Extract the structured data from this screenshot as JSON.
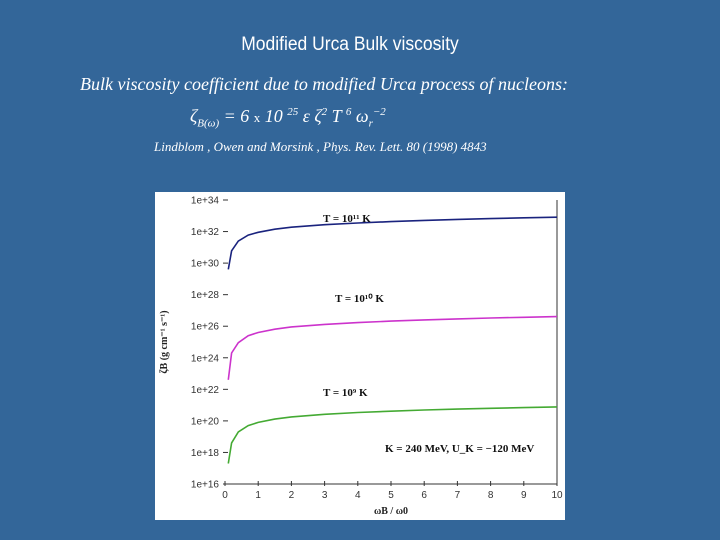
{
  "header": {
    "title": "Modified Urca Bulk viscosity",
    "subtitle": "Bulk viscosity coefficient due to modified Urca process of nucleons:",
    "formula": {
      "zeta": "ζ",
      "sub": "B(ω)",
      "eq": " = 6 ",
      "times": "x",
      "coef": " 10 ",
      "exp1": "25",
      "eps": " ε ζ",
      "exp2": "2",
      "T": " T ",
      "exp3": "6",
      "omega": " ω",
      "sub2": "r",
      "exp4": "−2"
    },
    "reference": "Lindblom , Owen and Morsink , Phys. Rev. Lett. 80 (1998) 4843"
  },
  "chart_data": {
    "type": "line",
    "xlabel": "ωB / ω0",
    "ylabel": "ζB (g cm⁻¹ s⁻¹)",
    "xlim": [
      0,
      10
    ],
    "ylim": [
      1e+16,
      1e+34
    ],
    "yscale": "log",
    "xticks": [
      "0",
      "1",
      "2",
      "3",
      "4",
      "5",
      "6",
      "7",
      "8",
      "9",
      "10"
    ],
    "yticks": [
      "1e+34",
      "1e+32",
      "1e+30",
      "1e+28",
      "1e+26",
      "1e+24",
      "1e+22",
      "1e+20",
      "1e+18",
      "1e+16"
    ],
    "series": [
      {
        "name": "T = 10¹¹ K",
        "color": "#1a237e",
        "x": [
          0.1,
          0.2,
          0.4,
          0.7,
          1,
          1.5,
          2,
          3,
          4,
          5,
          6,
          7,
          8,
          9,
          10
        ],
        "y": [
          4e+29,
          6e+30,
          2.5e+31,
          6e+31,
          9e+31,
          1.4e+32,
          1.9e+32,
          2.7e+32,
          3.5e+32,
          4.3e+32,
          5.1e+32,
          5.9e+32,
          6.6e+32,
          7.4e+32,
          8.1e+32
        ]
      },
      {
        "name": "T = 10¹⁰ K",
        "color": "#cc33cc",
        "x": [
          0.1,
          0.2,
          0.4,
          0.7,
          1,
          1.5,
          2,
          3,
          4,
          5,
          6,
          7,
          8,
          9,
          10
        ],
        "y": [
          4e+22,
          2e+24,
          9e+24,
          2.5e+25,
          4e+25,
          6.5e+25,
          9e+25,
          1.3e+26,
          1.7e+26,
          2.1e+26,
          2.5e+26,
          2.9e+26,
          3.3e+26,
          3.7e+26,
          4.1e+26
        ]
      },
      {
        "name": "T = 10⁹ K",
        "color": "#44aa33",
        "x": [
          0.1,
          0.2,
          0.4,
          0.7,
          1,
          1.5,
          2,
          3,
          4,
          5,
          6,
          7,
          8,
          9,
          10
        ],
        "y": [
          2e+17,
          4e+18,
          2e+19,
          5e+19,
          8e+19,
          1.3e+20,
          1.8e+20,
          2.6e+20,
          3.4e+20,
          4.1e+20,
          4.9e+20,
          5.6e+20,
          6.3e+20,
          7e+20,
          7.7e+20
        ]
      }
    ],
    "annotations": [
      {
        "text": "T = 10¹¹ K",
        "near_series": 0
      },
      {
        "text": "T = 10¹⁰ K",
        "near_series": 1
      },
      {
        "text": "T = 10⁹ K",
        "near_series": 2
      },
      {
        "text": "K = 240 MeV, U_K = −120 MeV",
        "location": "bottom-right"
      }
    ],
    "grid": false,
    "legend": "none"
  }
}
